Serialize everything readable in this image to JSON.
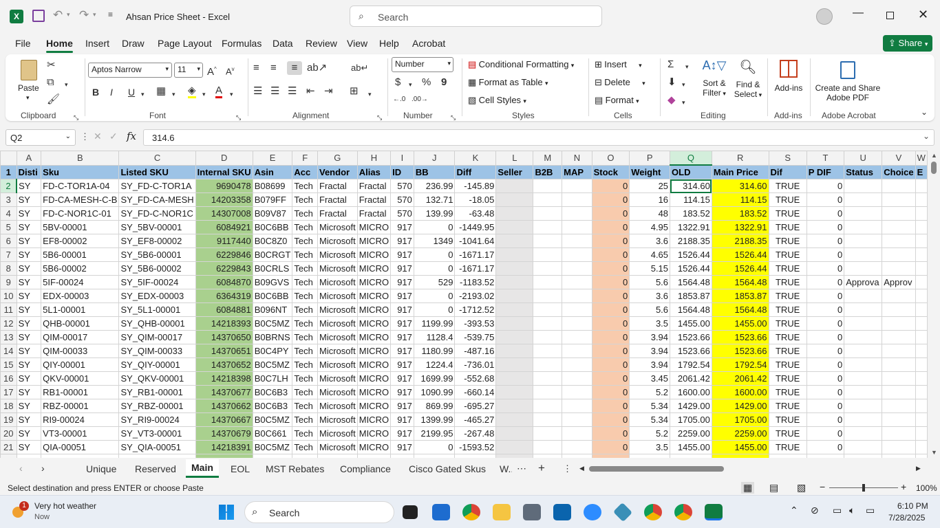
{
  "app": {
    "doc_title": "Ahsan Price Sheet",
    "app_name": "Excel",
    "title_sep": "-",
    "search_placeholder": "Search"
  },
  "menu": [
    "File",
    "Home",
    "Insert",
    "Draw",
    "Page Layout",
    "Formulas",
    "Data",
    "Review",
    "View",
    "Help",
    "Acrobat"
  ],
  "share_label": "Share",
  "ribbon": {
    "clipboard": {
      "paste": "Paste",
      "group": "Clipboard"
    },
    "font": {
      "name": "Aptos Narrow",
      "size": "11",
      "group": "Font",
      "bold": "B",
      "italic": "I",
      "underline": "U"
    },
    "alignment": {
      "group": "Alignment"
    },
    "number": {
      "format": "Number",
      "group": "Number",
      "currency": "$",
      "percent": "%",
      "comma": "9"
    },
    "styles": {
      "cond": "Conditional Formatting",
      "table": "Format as Table",
      "cell": "Cell Styles",
      "group": "Styles"
    },
    "cells": {
      "insert": "Insert",
      "delete": "Delete",
      "format": "Format",
      "group": "Cells"
    },
    "editing": {
      "sort": "Sort &",
      "sort2": "Filter",
      "find": "Find &",
      "find2": "Select",
      "group": "Editing"
    },
    "addins": {
      "label": "Add-ins",
      "group": "Add-ins"
    },
    "acrobat": {
      "label1": "Create and Share",
      "label2": "Adobe PDF",
      "group": "Adobe Acrobat"
    }
  },
  "formula": {
    "namebox": "Q2",
    "value": "314.6"
  },
  "columns": [
    "A",
    "B",
    "C",
    "D",
    "E",
    "F",
    "G",
    "H",
    "I",
    "J",
    "K",
    "L",
    "M",
    "N",
    "O",
    "P",
    "Q",
    "R",
    "S",
    "T",
    "U",
    "V",
    "W"
  ],
  "header": [
    "Disti",
    "Sku",
    "Listed SKU",
    "Internal SKU",
    "Asin",
    "Acc",
    "Vendor",
    "Alias",
    "ID",
    "BB",
    "Diff",
    "Seller",
    "B2B",
    "MAP",
    "Stock",
    "Weight",
    "OLD",
    "Main Price",
    "Dif",
    "P DIF",
    "Status",
    "Choice",
    "E"
  ],
  "rows": [
    [
      "SY",
      "FD-C-TOR1A-04",
      "SY_FD-C-TOR1A",
      "9690478",
      "B08699",
      "Tech",
      "Fractal",
      "Fractal",
      "570",
      "236.99",
      "-145.89",
      "",
      "",
      "",
      "0",
      "25",
      "314.60",
      "314.60",
      "TRUE",
      "0",
      "",
      ""
    ],
    [
      "SY",
      "FD-CA-MESH-C-B",
      "SY_FD-CA-MESH",
      "14203358",
      "B079FF",
      "Tech",
      "Fractal",
      "Fractal",
      "570",
      "132.71",
      "-18.05",
      "",
      "",
      "",
      "0",
      "16",
      "114.15",
      "114.15",
      "TRUE",
      "0",
      "",
      ""
    ],
    [
      "SY",
      "FD-C-NOR1C-01",
      "SY_FD-C-NOR1C",
      "14307008",
      "B09V87",
      "Tech",
      "Fractal",
      "Fractal",
      "570",
      "139.99",
      "-63.48",
      "",
      "",
      "",
      "0",
      "48",
      "183.52",
      "183.52",
      "TRUE",
      "0",
      "",
      ""
    ],
    [
      "SY",
      "5BV-00001",
      "SY_5BV-00001",
      "6084921",
      "B0C6BB",
      "Tech",
      "Microsoft",
      "MICRO",
      "917",
      "0",
      "-1449.95",
      "",
      "",
      "",
      "0",
      "4.95",
      "1322.91",
      "1322.91",
      "TRUE",
      "0",
      "",
      ""
    ],
    [
      "SY",
      "EF8-00002",
      "SY_EF8-00002",
      "9117440",
      "B0C8Z0",
      "Tech",
      "Microsoft",
      "MICRO",
      "917",
      "1349",
      "-1041.64",
      "",
      "",
      "",
      "0",
      "3.6",
      "2188.35",
      "2188.35",
      "TRUE",
      "0",
      "",
      ""
    ],
    [
      "SY",
      "5B6-00001",
      "SY_5B6-00001",
      "6229846",
      "B0CRGT",
      "Tech",
      "Microsoft",
      "MICRO",
      "917",
      "0",
      "-1671.17",
      "",
      "",
      "",
      "0",
      "4.65",
      "1526.44",
      "1526.44",
      "TRUE",
      "0",
      "",
      ""
    ],
    [
      "SY",
      "5B6-00002",
      "SY_5B6-00002",
      "6229843",
      "B0CRLS",
      "Tech",
      "Microsoft",
      "MICRO",
      "917",
      "0",
      "-1671.17",
      "",
      "",
      "",
      "0",
      "5.15",
      "1526.44",
      "1526.44",
      "TRUE",
      "0",
      "",
      ""
    ],
    [
      "SY",
      "5IF-00024",
      "SY_5IF-00024",
      "6084870",
      "B09GVS",
      "Tech",
      "Microsoft",
      "MICRO",
      "917",
      "529",
      "-1183.52",
      "",
      "",
      "",
      "0",
      "5.6",
      "1564.48",
      "1564.48",
      "TRUE",
      "0",
      "Approva",
      "Approv"
    ],
    [
      "SY",
      "EDX-00003",
      "SY_EDX-00003",
      "6364319",
      "B0C6BB",
      "Tech",
      "Microsoft",
      "MICRO",
      "917",
      "0",
      "-2193.02",
      "",
      "",
      "",
      "0",
      "3.6",
      "1853.87",
      "1853.87",
      "TRUE",
      "0",
      "",
      ""
    ],
    [
      "SY",
      "5L1-00001",
      "SY_5L1-00001",
      "6084881",
      "B096NT",
      "Tech",
      "Microsoft",
      "MICRO",
      "917",
      "0",
      "-1712.52",
      "",
      "",
      "",
      "0",
      "5.6",
      "1564.48",
      "1564.48",
      "TRUE",
      "0",
      "",
      ""
    ],
    [
      "SY",
      "QHB-00001",
      "SY_QHB-00001",
      "14218393",
      "B0C5MZ",
      "Tech",
      "Microsoft",
      "MICRO",
      "917",
      "1199.99",
      "-393.53",
      "",
      "",
      "",
      "0",
      "3.5",
      "1455.00",
      "1455.00",
      "TRUE",
      "0",
      "",
      ""
    ],
    [
      "SY",
      "QIM-00017",
      "SY_QIM-00017",
      "14370650",
      "B0BRNS",
      "Tech",
      "Microsoft",
      "MICRO",
      "917",
      "1128.4",
      "-539.75",
      "",
      "",
      "",
      "0",
      "3.94",
      "1523.66",
      "1523.66",
      "TRUE",
      "0",
      "",
      ""
    ],
    [
      "SY",
      "QIM-00033",
      "SY_QIM-00033",
      "14370651",
      "B0C4PY",
      "Tech",
      "Microsoft",
      "MICRO",
      "917",
      "1180.99",
      "-487.16",
      "",
      "",
      "",
      "0",
      "3.94",
      "1523.66",
      "1523.66",
      "TRUE",
      "0",
      "",
      ""
    ],
    [
      "SY",
      "QIY-00001",
      "SY_QIY-00001",
      "14370652",
      "B0C5MZ",
      "Tech",
      "Microsoft",
      "MICRO",
      "917",
      "1224.4",
      "-736.01",
      "",
      "",
      "",
      "0",
      "3.94",
      "1792.54",
      "1792.54",
      "TRUE",
      "0",
      "",
      ""
    ],
    [
      "SY",
      "QKV-00001",
      "SY_QKV-00001",
      "14218398",
      "B0C7LH",
      "Tech",
      "Microsoft",
      "MICRO",
      "917",
      "1699.99",
      "-552.68",
      "",
      "",
      "",
      "0",
      "3.45",
      "2061.42",
      "2061.42",
      "TRUE",
      "0",
      "",
      ""
    ],
    [
      "SY",
      "RB1-00001",
      "SY_RB1-00001",
      "14370677",
      "B0C6B3",
      "Tech",
      "Microsoft",
      "MICRO",
      "917",
      "1090.99",
      "-660.14",
      "",
      "",
      "",
      "0",
      "5.2",
      "1600.00",
      "1600.00",
      "TRUE",
      "0",
      "",
      ""
    ],
    [
      "SY",
      "RBZ-00001",
      "SY_RBZ-00001",
      "14370662",
      "B0C6B3",
      "Tech",
      "Microsoft",
      "MICRO",
      "917",
      "869.99",
      "-695.27",
      "",
      "",
      "",
      "0",
      "5.34",
      "1429.00",
      "1429.00",
      "TRUE",
      "0",
      "",
      ""
    ],
    [
      "SY",
      "RI9-00024",
      "SY_RI9-00024",
      "14370667",
      "B0C5MZ",
      "Tech",
      "Microsoft",
      "MICRO",
      "917",
      "1399.99",
      "-465.27",
      "",
      "",
      "",
      "0",
      "5.34",
      "1705.00",
      "1705.00",
      "TRUE",
      "0",
      "",
      ""
    ],
    [
      "SY",
      "VT3-00001",
      "SY_VT3-00001",
      "14370679",
      "B0C661",
      "Tech",
      "Microsoft",
      "MICRO",
      "917",
      "2199.95",
      "-267.48",
      "",
      "",
      "",
      "0",
      "5.2",
      "2259.00",
      "2259.00",
      "TRUE",
      "0",
      "",
      ""
    ],
    [
      "SY",
      "QIA-00051",
      "SY_QIA-00051",
      "14218391",
      "B0C5MZ",
      "Tech",
      "Microsoft",
      "MICRO",
      "917",
      "0",
      "-1593.52",
      "",
      "",
      "",
      "0",
      "3.5",
      "1455.00",
      "1455.00",
      "TRUE",
      "0",
      "",
      ""
    ]
  ],
  "sheets": [
    "Unique",
    "Reserved",
    "Main",
    "EOL",
    "MST Rebates",
    "Compliance",
    "Cisco Gated Skus",
    "W..."
  ],
  "status": {
    "message": "Select destination and press ENTER or choose Paste",
    "zoom": "100%"
  },
  "taskbar": {
    "weather_title": "Very hot weather",
    "weather_sub": "Now",
    "badge": "1",
    "search": "Search",
    "time": "6:10 PM",
    "date": "7/28/2025"
  }
}
